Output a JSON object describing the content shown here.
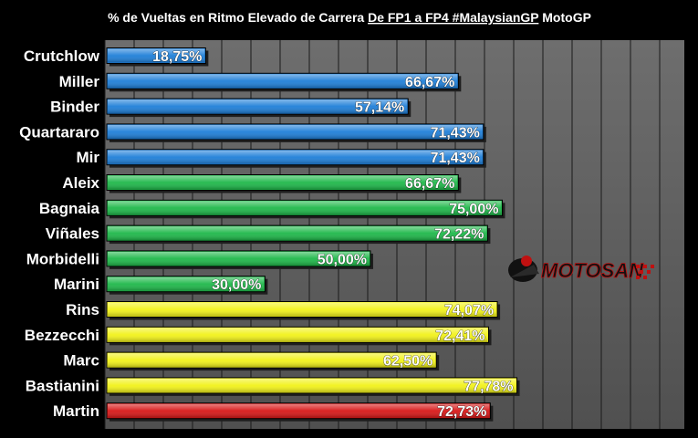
{
  "chart_data": {
    "type": "bar",
    "orientation": "horizontal",
    "title_parts": [
      {
        "text": "% de Vueltas en Ritmo Elevado de Carrera ",
        "underline": false
      },
      {
        "text": "De FP1 a FP4 #MalaysianGP",
        "underline": true
      },
      {
        "text": " MotoGP",
        "underline": false
      }
    ],
    "categories": [
      "Crutchlow",
      "Miller",
      "Binder",
      "Quartararo",
      "Mir",
      "Aleix",
      "Bagnaia",
      "Viñales",
      "Morbidelli",
      "Marini",
      "Rins",
      "Bezzecchi",
      "Marc",
      "Bastianini",
      "Martin"
    ],
    "values": [
      18.75,
      66.67,
      57.14,
      71.43,
      71.43,
      66.67,
      75.0,
      72.22,
      50.0,
      30.0,
      74.07,
      72.41,
      62.5,
      77.78,
      72.73
    ],
    "value_labels": [
      "18,75%",
      "66,67%",
      "57,14%",
      "71,43%",
      "71,43%",
      "66,67%",
      "75,00%",
      "72,22%",
      "50,00%",
      "30,00%",
      "74,07%",
      "72,41%",
      "62,50%",
      "77,78%",
      "72,73%"
    ],
    "bar_colors": [
      "#1f7fd8",
      "#1f7fd8",
      "#1f7fd8",
      "#1f7fd8",
      "#1f7fd8",
      "#1fb84a",
      "#1fb84a",
      "#1fb84a",
      "#1fb84a",
      "#1fb84a",
      "#f2f21a",
      "#f2f21a",
      "#f2f21a",
      "#f2f21a",
      "#d81818"
    ],
    "xlim": [
      0,
      100
    ],
    "grid": true,
    "legend": "none",
    "watermark": "MOTOSAN"
  }
}
